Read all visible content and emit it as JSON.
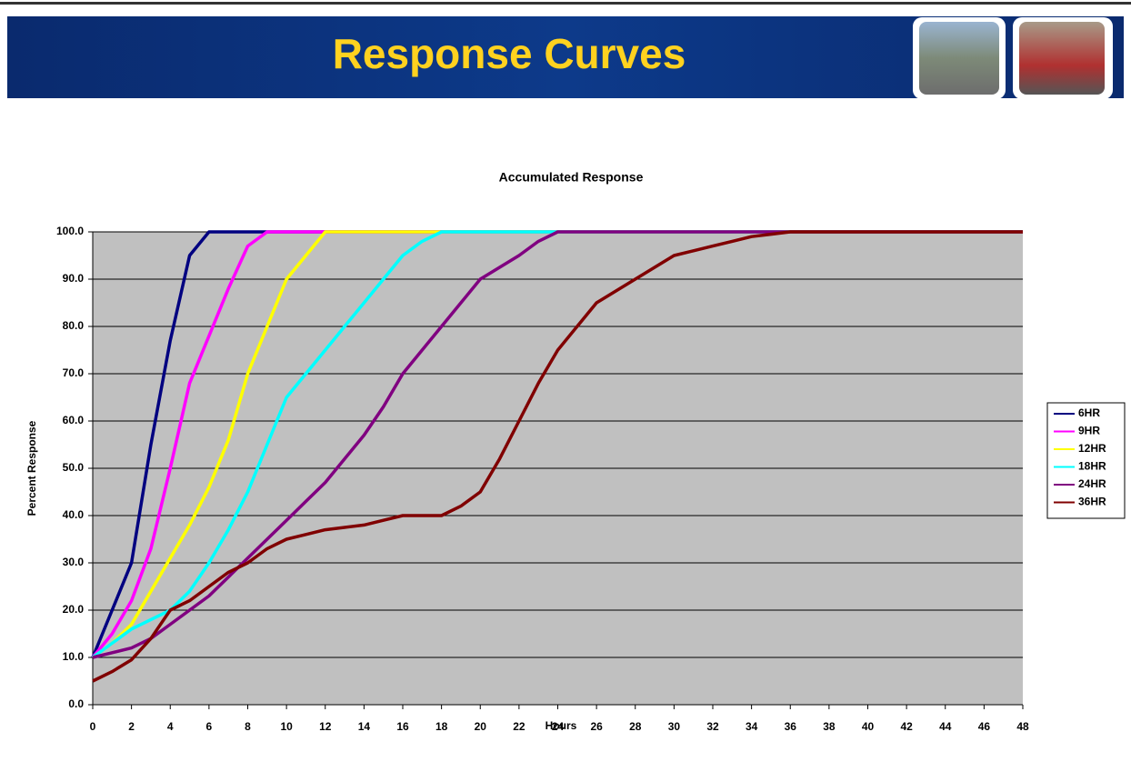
{
  "header": {
    "title": "Response Curves"
  },
  "chart_data": {
    "type": "line",
    "title": "Accumulated Response",
    "x_label": "Hours",
    "y_label": "Percent Response",
    "x": [
      0,
      1,
      2,
      3,
      4,
      5,
      6,
      7,
      8,
      9,
      10,
      11,
      12,
      13,
      14,
      15,
      16,
      17,
      18,
      19,
      20,
      21,
      22,
      23,
      24,
      25,
      26,
      27,
      28,
      29,
      30,
      31,
      32,
      33,
      34,
      35,
      36,
      37,
      38,
      39,
      40,
      41,
      42,
      43,
      44,
      45,
      46,
      47,
      48
    ],
    "xlim": [
      0,
      48
    ],
    "xticks": [
      0,
      2,
      4,
      6,
      8,
      10,
      12,
      14,
      16,
      18,
      20,
      22,
      24,
      26,
      28,
      30,
      32,
      34,
      36,
      38,
      40,
      42,
      44,
      46,
      48
    ],
    "ylim": [
      0,
      100
    ],
    "yticks": [
      {
        "value": 0,
        "label": "0.0"
      },
      {
        "value": 10,
        "label": "10.0"
      },
      {
        "value": 20,
        "label": "20.0"
      },
      {
        "value": 30,
        "label": "30.0"
      },
      {
        "value": 40,
        "label": "40.0"
      },
      {
        "value": 50,
        "label": "50.0"
      },
      {
        "value": 60,
        "label": "60.0"
      },
      {
        "value": 70,
        "label": "70.0"
      },
      {
        "value": 80,
        "label": "80.0"
      },
      {
        "value": 90,
        "label": "90.0"
      },
      {
        "value": 100,
        "label": "100.0"
      }
    ],
    "grid": true,
    "legend": "right",
    "plot_background": "#c0c0c0",
    "series": [
      {
        "name": "6HR",
        "color": "#000080",
        "values": [
          10,
          20,
          30,
          55,
          77,
          95,
          100,
          100,
          100,
          100,
          100,
          100,
          100,
          100,
          100,
          100,
          100,
          100,
          100,
          100,
          100,
          100,
          100,
          100,
          100,
          100,
          100,
          100,
          100,
          100,
          100,
          100,
          100,
          100,
          100,
          100,
          100,
          100,
          100,
          100,
          100,
          100,
          100,
          100,
          100,
          100,
          100,
          100,
          100
        ]
      },
      {
        "name": "9HR",
        "color": "#ff00ff",
        "values": [
          10,
          15,
          22,
          33,
          50,
          68,
          78,
          88,
          97,
          100,
          100,
          100,
          100,
          100,
          100,
          100,
          100,
          100,
          100,
          100,
          100,
          100,
          100,
          100,
          100,
          100,
          100,
          100,
          100,
          100,
          100,
          100,
          100,
          100,
          100,
          100,
          100,
          100,
          100,
          100,
          100,
          100,
          100,
          100,
          100,
          100,
          100,
          100,
          100
        ]
      },
      {
        "name": "12HR",
        "color": "#ffff00",
        "values": [
          10,
          13,
          17,
          24,
          31,
          38,
          46,
          56,
          70,
          80,
          90,
          95,
          100,
          100,
          100,
          100,
          100,
          100,
          100,
          100,
          100,
          100,
          100,
          100,
          100,
          100,
          100,
          100,
          100,
          100,
          100,
          100,
          100,
          100,
          100,
          100,
          100,
          100,
          100,
          100,
          100,
          100,
          100,
          100,
          100,
          100,
          100,
          100,
          100
        ]
      },
      {
        "name": "18HR",
        "color": "#00ffff",
        "values": [
          10,
          13,
          16,
          18,
          20,
          24,
          30,
          37,
          45,
          55,
          65,
          70,
          75,
          80,
          85,
          90,
          95,
          98,
          100,
          100,
          100,
          100,
          100,
          100,
          100,
          100,
          100,
          100,
          100,
          100,
          100,
          100,
          100,
          100,
          100,
          100,
          100,
          100,
          100,
          100,
          100,
          100,
          100,
          100,
          100,
          100,
          100,
          100,
          100
        ]
      },
      {
        "name": "24HR",
        "color": "#800080",
        "values": [
          10,
          11,
          12,
          14,
          17,
          20,
          23,
          27,
          31,
          35,
          39,
          43,
          47,
          52,
          57,
          63,
          70,
          75,
          80,
          85,
          90,
          92.5,
          95,
          98,
          100,
          100,
          100,
          100,
          100,
          100,
          100,
          100,
          100,
          100,
          100,
          100,
          100,
          100,
          100,
          100,
          100,
          100,
          100,
          100,
          100,
          100,
          100,
          100,
          100
        ]
      },
      {
        "name": "36HR",
        "color": "#800000",
        "values": [
          5,
          7,
          9.5,
          14,
          20,
          22,
          25,
          28,
          30,
          33,
          35,
          36,
          37,
          37.5,
          38,
          39,
          40,
          40,
          40,
          42,
          45,
          52,
          60,
          68,
          75,
          80,
          85,
          87.5,
          90,
          92.5,
          95,
          96,
          97,
          98,
          99,
          99.5,
          100,
          100,
          100,
          100,
          100,
          100,
          100,
          100,
          100,
          100,
          100,
          100,
          100
        ]
      }
    ]
  }
}
